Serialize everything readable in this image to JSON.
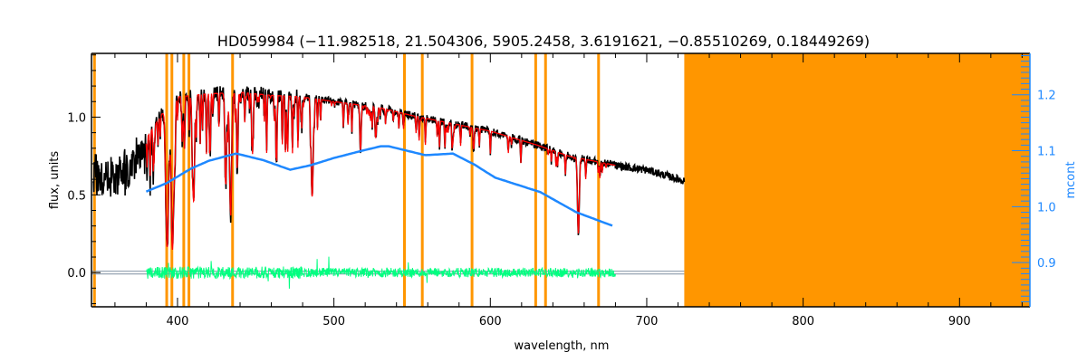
{
  "chart_data": {
    "type": "line",
    "title": "HD059984    (−11.982518, 21.504306, 5905.2458, 3.6191621, −0.85510269, 0.18449269)",
    "xlabel": "wavelength, nm",
    "ylabel": "flux, units",
    "y2label": "mcont",
    "xlim": [
      345,
      945
    ],
    "ylim": [
      -0.22,
      1.41
    ],
    "y2lim": [
      0.821,
      1.274
    ],
    "xticks": [
      "400",
      "500",
      "600",
      "700",
      "800",
      "900"
    ],
    "xtick_values": [
      400,
      500,
      600,
      700,
      800,
      900
    ],
    "yticks": [
      "0.0",
      "0.5",
      "1.0"
    ],
    "ytick_values": [
      0,
      0.5,
      1.0
    ],
    "y2ticks": [
      "0.9",
      "1.0",
      "1.1",
      "1.2"
    ],
    "y2tick_values": [
      0.9,
      1.0,
      1.1,
      1.2
    ],
    "colors": {
      "observed": "#000000",
      "model": "#ff0000",
      "residual": "#00ff80",
      "mcont": "#1e88ff",
      "mask": "#ff9600",
      "zero_line": "#7f8fa0"
    },
    "observed_continuum": {
      "wavelength": [
        346,
        360,
        370,
        380,
        390,
        400,
        420,
        440,
        460,
        480,
        500,
        530,
        550,
        580,
        600,
        630,
        650,
        680,
        700,
        724
      ],
      "flux": [
        0.67,
        0.68,
        0.73,
        0.86,
        1.02,
        1.13,
        1.15,
        1.16,
        1.14,
        1.13,
        1.1,
        1.06,
        1.01,
        0.95,
        0.91,
        0.82,
        0.75,
        0.69,
        0.66,
        0.59
      ]
    },
    "absorption_lines": [
      {
        "wavelength": 393.4,
        "depth": 0.85,
        "width": 1.2
      },
      {
        "wavelength": 396.8,
        "depth": 0.85,
        "width": 1.2
      },
      {
        "wavelength": 410.2,
        "depth": 0.55,
        "width": 1.0
      },
      {
        "wavelength": 430.8,
        "depth": 0.35,
        "width": 0.8
      },
      {
        "wavelength": 434.0,
        "depth": 0.6,
        "width": 1.0
      },
      {
        "wavelength": 438.4,
        "depth": 0.3,
        "width": 0.5
      },
      {
        "wavelength": 486.1,
        "depth": 0.57,
        "width": 0.9
      },
      {
        "wavelength": 517.0,
        "depth": 0.28,
        "width": 0.6
      },
      {
        "wavelength": 527.0,
        "depth": 0.15,
        "width": 0.5
      },
      {
        "wavelength": 589.3,
        "depth": 0.15,
        "width": 0.6
      },
      {
        "wavelength": 656.3,
        "depth": 0.66,
        "width": 0.8
      }
    ],
    "model_range": [
      380,
      680
    ],
    "residual_range": [
      380,
      680
    ],
    "residual_level": 0.0,
    "mcont": {
      "wavelength": [
        380,
        393,
        408.6,
        420,
        437.5,
        455,
        472,
        485,
        500,
        518,
        530,
        535,
        558.5,
        576,
        590,
        603,
        632,
        655,
        678
      ],
      "value": [
        1.027,
        1.042,
        1.068,
        1.082,
        1.095,
        1.083,
        1.066,
        1.074,
        1.087,
        1.1,
        1.108,
        1.108,
        1.092,
        1.095,
        1.075,
        1.052,
        1.026,
        0.99,
        0.966
      ]
    },
    "mask_lines": [
      346.9,
      393.1,
      396.4,
      404.0,
      407.3,
      435.2,
      545.1,
      556.5,
      588.3,
      629.0,
      635.3,
      669.2
    ],
    "mask_band": [
      724,
      945
    ]
  }
}
